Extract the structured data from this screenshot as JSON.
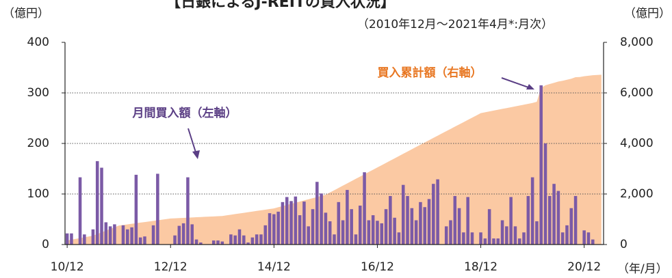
{
  "chart_data": {
    "type": "bar-area",
    "title": "【日銀によるJ-REITの買入状況】",
    "subtitle": "（2010年12月～2021年4月*:月次）",
    "y_label": "（億円）",
    "y2_label": "（億円）",
    "x_label": "（年/月）",
    "categories": [
      "10/12",
      null,
      null,
      null,
      null,
      null,
      null,
      null,
      null,
      null,
      null,
      null,
      null,
      null,
      null,
      null,
      null,
      null,
      null,
      null,
      null,
      null,
      null,
      null,
      "12/12",
      null,
      null,
      null,
      null,
      null,
      null,
      null,
      null,
      null,
      null,
      null,
      null,
      null,
      null,
      null,
      null,
      null,
      null,
      null,
      null,
      null,
      null,
      null,
      "14/12",
      null,
      null,
      null,
      null,
      null,
      null,
      null,
      null,
      null,
      null,
      null,
      null,
      null,
      null,
      null,
      null,
      null,
      null,
      null,
      null,
      null,
      null,
      null,
      "16/12",
      null,
      null,
      null,
      null,
      null,
      null,
      null,
      null,
      null,
      null,
      null,
      null,
      null,
      null,
      null,
      null,
      null,
      null,
      null,
      null,
      null,
      null,
      null,
      "18/12",
      null,
      null,
      null,
      null,
      null,
      null,
      null,
      null,
      null,
      null,
      null,
      null,
      null,
      null,
      null,
      null,
      null,
      null,
      null,
      null,
      null,
      null,
      null,
      "20/12",
      null,
      null,
      null,
      null
    ],
    "series": [
      {
        "name": "月間買入額（左軸）",
        "color": "#7b5aa6",
        "values": [
          22,
          22,
          0,
          133,
          20,
          0,
          30,
          165,
          152,
          44,
          36,
          40,
          0,
          38,
          30,
          34,
          138,
          14,
          16,
          0,
          38,
          140,
          0,
          0,
          0,
          18,
          37,
          42,
          133,
          40,
          10,
          4,
          0,
          0,
          8,
          8,
          6,
          0,
          20,
          18,
          30,
          18,
          4,
          14,
          20,
          20,
          38,
          62,
          60,
          65,
          84,
          94,
          86,
          95,
          58,
          85,
          36,
          70,
          124,
          101,
          63,
          46,
          20,
          84,
          48,
          108,
          70,
          20,
          77,
          143,
          48,
          58,
          47,
          42,
          70,
          96,
          53,
          24,
          118,
          96,
          72,
          48,
          84,
          74,
          90,
          120,
          129,
          0,
          36,
          48,
          96,
          72,
          24,
          94,
          24,
          0,
          24,
          12,
          70,
          12,
          12,
          48,
          36,
          94,
          36,
          12,
          24,
          96,
          133,
          46,
          315,
          200,
          96,
          120,
          106,
          24,
          38,
          72,
          96,
          0,
          28,
          24,
          10,
          0,
          0
        ]
      },
      {
        "name": "買入累計額（右軸）",
        "color": "#fbc9a3",
        "axis": "y2",
        "values": [
          160,
          192,
          223,
          255,
          287,
          318,
          350,
          417,
          483,
          550,
          617,
          683,
          750,
          773,
          797,
          820,
          843,
          867,
          890,
          913,
          937,
          960,
          983,
          1007,
          1030,
          1038,
          1047,
          1055,
          1063,
          1072,
          1080,
          1088,
          1097,
          1105,
          1113,
          1122,
          1130,
          1155,
          1180,
          1205,
          1230,
          1255,
          1280,
          1305,
          1330,
          1355,
          1380,
          1405,
          1430,
          1475,
          1520,
          1565,
          1610,
          1655,
          1700,
          1745,
          1790,
          1835,
          1880,
          1925,
          1970,
          2060,
          2150,
          2240,
          2330,
          2420,
          2510,
          2600,
          2690,
          2780,
          2870,
          2960,
          3050,
          3140,
          3230,
          3320,
          3410,
          3500,
          3590,
          3680,
          3770,
          3860,
          3950,
          4040,
          4130,
          4219,
          4308,
          4397,
          4486,
          4575,
          4664,
          4753,
          4842,
          4931,
          5020,
          5109,
          5200,
          5233,
          5267,
          5300,
          5333,
          5367,
          5400,
          5433,
          5467,
          5500,
          5533,
          5567,
          5600,
          5650,
          6200,
          6300,
          6350,
          6400,
          6450,
          6480,
          6520,
          6560,
          6620,
          6630,
          6660,
          6680,
          6700,
          6710,
          6720
        ]
      }
    ],
    "ylim": [
      0,
      400
    ],
    "yticks": [
      0,
      100,
      200,
      300,
      400
    ],
    "y2lim": [
      0,
      8000
    ],
    "y2ticks": [
      0,
      {
        "value": 2000,
        "label": "2,000"
      },
      {
        "value": 4000,
        "label": "4,000"
      },
      {
        "value": 6000,
        "label": "6,000"
      },
      {
        "value": 8000,
        "label": "8,000"
      }
    ],
    "grid": true
  }
}
